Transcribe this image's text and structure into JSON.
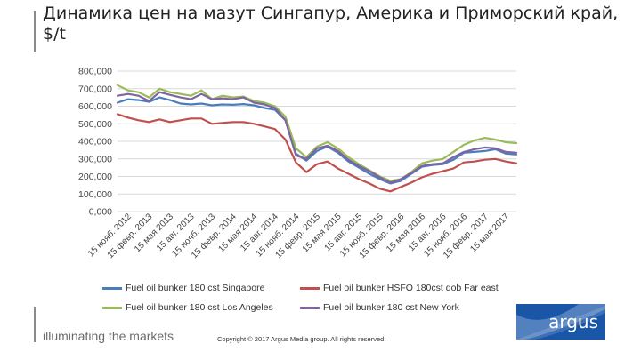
{
  "slide": {
    "title": "Динамика цен на мазут Сингапур, Америка и Приморский край, $/t",
    "footer_tagline": "illuminating the markets",
    "copyright": "Copyright © 2017 Argus Media group. All rights reserved.",
    "logo_text": "argus",
    "logo_color": "#1a56a8"
  },
  "chart_data": {
    "type": "line",
    "title": "",
    "xlabel": "",
    "ylabel": "",
    "ylim": [
      0,
      800000
    ],
    "y_ticks": [
      "0,000",
      "100,000",
      "200,000",
      "300,000",
      "400,000",
      "500,000",
      "600,000",
      "700,000",
      "800,000"
    ],
    "grid": "horizontal",
    "legend_position": "bottom",
    "x_labels": [
      "15 нояб. 2012",
      "15 февр. 2013",
      "15 мая 2013",
      "15 авг. 2013",
      "15 нояб. 2013",
      "15 февр. 2014",
      "15 мая 2014",
      "15 авг. 2014",
      "15 нояб. 2014",
      "15 февр. 2015",
      "15 мая 2015",
      "15 авг. 2015",
      "15 нояб. 2015",
      "15 февр. 2016",
      "15 мая 2016",
      "15 авг. 2016",
      "15 нояб. 2016",
      "15 февр. 2017",
      "15 мая 2017"
    ],
    "series": [
      {
        "name": "Fuel oil bunker 180 cst Singapore",
        "color": "#4a7ebb",
        "values": [
          620000,
          640000,
          635000,
          625000,
          650000,
          635000,
          615000,
          610000,
          615000,
          605000,
          610000,
          608000,
          612000,
          605000,
          590000,
          580000,
          520000,
          330000,
          290000,
          345000,
          370000,
          335000,
          285000,
          250000,
          215000,
          185000,
          160000,
          175000,
          215000,
          255000,
          265000,
          270000,
          295000,
          335000,
          340000,
          345000,
          355000,
          330000,
          325000
        ]
      },
      {
        "name": "Fuel oil bunker HSFO 180cst dob Far east",
        "color": "#c0504d",
        "values": [
          555000,
          535000,
          520000,
          510000,
          525000,
          510000,
          520000,
          530000,
          530000,
          500000,
          505000,
          510000,
          510000,
          500000,
          485000,
          470000,
          410000,
          280000,
          225000,
          270000,
          285000,
          245000,
          215000,
          185000,
          160000,
          130000,
          115000,
          140000,
          165000,
          195000,
          215000,
          230000,
          245000,
          280000,
          285000,
          295000,
          300000,
          285000,
          275000
        ]
      },
      {
        "name": "Fuel oil bunker 180 cst Los Angeles",
        "color": "#9bbb59",
        "values": [
          720000,
          690000,
          680000,
          650000,
          700000,
          680000,
          670000,
          660000,
          690000,
          640000,
          660000,
          650000,
          655000,
          630000,
          620000,
          600000,
          540000,
          360000,
          310000,
          370000,
          395000,
          360000,
          310000,
          270000,
          235000,
          200000,
          175000,
          185000,
          225000,
          275000,
          290000,
          300000,
          340000,
          380000,
          405000,
          420000,
          410000,
          395000,
          390000
        ]
      },
      {
        "name": "Fuel oil bunker 180 cst New York",
        "color": "#8064a2",
        "values": [
          660000,
          670000,
          660000,
          630000,
          680000,
          665000,
          650000,
          640000,
          670000,
          640000,
          645000,
          640000,
          650000,
          620000,
          610000,
          590000,
          520000,
          320000,
          300000,
          360000,
          375000,
          345000,
          295000,
          260000,
          230000,
          195000,
          165000,
          185000,
          220000,
          260000,
          270000,
          275000,
          310000,
          340000,
          355000,
          365000,
          360000,
          340000,
          335000
        ]
      }
    ]
  }
}
